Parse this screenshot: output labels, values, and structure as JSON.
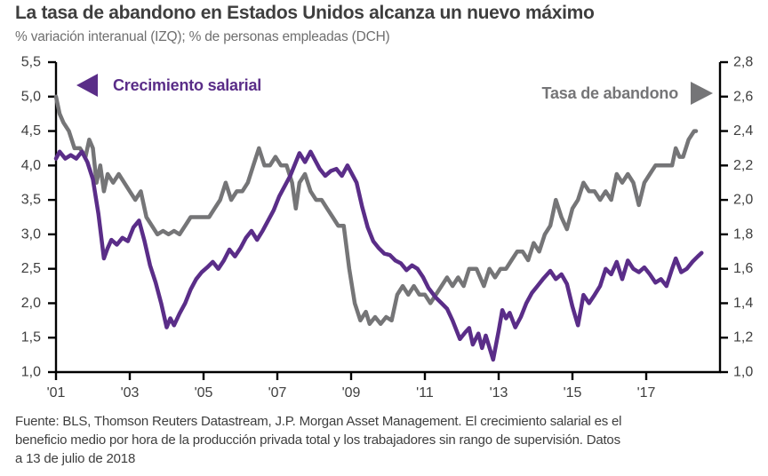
{
  "header": {
    "title": "La tasa de abandono en Estados Unidos alcanza un nuevo máximo",
    "subtitle": "% variación interanual (IZQ); % de personas empleadas (DCH)"
  },
  "legend": {
    "left_label": "Crecimiento salarial",
    "right_label": "Tasa de abandono"
  },
  "footer": {
    "lines": [
      "Fuente: BLS, Thomson Reuters Datastream, J.P. Morgan Asset Management. El crecimiento salarial es el",
      "beneficio medio  por hora de la producción privada total y los trabajadores sin rango de supervisión. Datos",
      "a 13 de julio de 2018"
    ]
  },
  "colors": {
    "wage_growth": "#5A2D88",
    "quit_rate": "#757577",
    "axis": "#000000",
    "tick_text": "#3E3E3E"
  },
  "chart_data": {
    "type": "line",
    "title": "La tasa de abandono en Estados Unidos alcanza un nuevo máximo",
    "subtitle": "% variación interanual (IZQ); % de personas empleadas (DCH)",
    "grid": false,
    "legend_position": "top-inside",
    "x_domain": [
      2001,
      2019
    ],
    "x_ticks": {
      "values": [
        2001,
        2003,
        2005,
        2007,
        2009,
        2011,
        2013,
        2015,
        2017
      ],
      "labels": [
        "'01",
        "'03",
        "'05",
        "'07",
        "'09",
        "'11",
        "'13",
        "'15",
        "'17"
      ]
    },
    "left_axis": {
      "label": "% variación interanual (IZQ)",
      "range": [
        1.0,
        5.5
      ],
      "tick_values": [
        5.5,
        5.0,
        4.5,
        4.0,
        3.5,
        3.0,
        2.5,
        2.0,
        1.5,
        1.0
      ],
      "tick_labels": [
        "5,5",
        "5,0",
        "4,5",
        "4,0",
        "3,5",
        "3,0",
        "2,5",
        "2,0",
        "1,5",
        "1,0"
      ]
    },
    "right_axis": {
      "label": "% de personas empleadas (DCH)",
      "range": [
        1.0,
        2.8
      ],
      "tick_values": [
        2.8,
        2.6,
        2.4,
        2.2,
        2.0,
        1.8,
        1.6,
        1.4,
        1.2,
        1.0
      ],
      "tick_labels": [
        "2,8",
        "2,6",
        "2,4",
        "2,2",
        "2,0",
        "1,8",
        "1,6",
        "1,4",
        "1,2",
        "1,0"
      ]
    },
    "series": [
      {
        "name": "Tasa de abandono",
        "color_key": "quit_rate",
        "axis": "right",
        "points": [
          [
            2001.0,
            2.6
          ],
          [
            2001.1,
            2.5
          ],
          [
            2001.2,
            2.45
          ],
          [
            2001.35,
            2.4
          ],
          [
            2001.5,
            2.3
          ],
          [
            2001.65,
            2.3
          ],
          [
            2001.8,
            2.25
          ],
          [
            2001.9,
            2.35
          ],
          [
            2002.0,
            2.3
          ],
          [
            2002.1,
            2.1
          ],
          [
            2002.2,
            2.2
          ],
          [
            2002.3,
            2.05
          ],
          [
            2002.4,
            2.15
          ],
          [
            2002.55,
            2.1
          ],
          [
            2002.7,
            2.15
          ],
          [
            2002.85,
            2.1
          ],
          [
            2003.0,
            2.05
          ],
          [
            2003.15,
            2.0
          ],
          [
            2003.3,
            2.05
          ],
          [
            2003.45,
            1.9
          ],
          [
            2003.6,
            1.85
          ],
          [
            2003.75,
            1.8
          ],
          [
            2003.9,
            1.82
          ],
          [
            2004.05,
            1.8
          ],
          [
            2004.2,
            1.82
          ],
          [
            2004.35,
            1.8
          ],
          [
            2004.5,
            1.85
          ],
          [
            2004.65,
            1.9
          ],
          [
            2004.85,
            1.9
          ],
          [
            2005.0,
            1.9
          ],
          [
            2005.15,
            1.9
          ],
          [
            2005.3,
            1.95
          ],
          [
            2005.45,
            2.0
          ],
          [
            2005.6,
            2.1
          ],
          [
            2005.75,
            2.0
          ],
          [
            2005.9,
            2.05
          ],
          [
            2006.05,
            2.05
          ],
          [
            2006.2,
            2.1
          ],
          [
            2006.35,
            2.2
          ],
          [
            2006.5,
            2.3
          ],
          [
            2006.65,
            2.2
          ],
          [
            2006.8,
            2.2
          ],
          [
            2006.95,
            2.25
          ],
          [
            2007.1,
            2.2
          ],
          [
            2007.25,
            2.2
          ],
          [
            2007.4,
            2.1
          ],
          [
            2007.5,
            1.95
          ],
          [
            2007.6,
            2.1
          ],
          [
            2007.75,
            2.15
          ],
          [
            2007.9,
            2.05
          ],
          [
            2008.05,
            2.0
          ],
          [
            2008.2,
            2.0
          ],
          [
            2008.35,
            1.95
          ],
          [
            2008.5,
            1.9
          ],
          [
            2008.65,
            1.85
          ],
          [
            2008.8,
            1.85
          ],
          [
            2008.95,
            1.6
          ],
          [
            2009.1,
            1.4
          ],
          [
            2009.25,
            1.3
          ],
          [
            2009.4,
            1.35
          ],
          [
            2009.5,
            1.28
          ],
          [
            2009.65,
            1.32
          ],
          [
            2009.8,
            1.28
          ],
          [
            2009.95,
            1.32
          ],
          [
            2010.1,
            1.3
          ],
          [
            2010.25,
            1.45
          ],
          [
            2010.4,
            1.5
          ],
          [
            2010.55,
            1.45
          ],
          [
            2010.7,
            1.5
          ],
          [
            2010.85,
            1.45
          ],
          [
            2011.0,
            1.45
          ],
          [
            2011.15,
            1.4
          ],
          [
            2011.3,
            1.45
          ],
          [
            2011.45,
            1.5
          ],
          [
            2011.6,
            1.55
          ],
          [
            2011.75,
            1.5
          ],
          [
            2011.9,
            1.55
          ],
          [
            2012.05,
            1.5
          ],
          [
            2012.2,
            1.6
          ],
          [
            2012.4,
            1.6
          ],
          [
            2012.6,
            1.5
          ],
          [
            2012.75,
            1.6
          ],
          [
            2012.9,
            1.55
          ],
          [
            2013.05,
            1.6
          ],
          [
            2013.2,
            1.6
          ],
          [
            2013.35,
            1.65
          ],
          [
            2013.5,
            1.7
          ],
          [
            2013.65,
            1.7
          ],
          [
            2013.8,
            1.65
          ],
          [
            2013.95,
            1.75
          ],
          [
            2014.1,
            1.7
          ],
          [
            2014.25,
            1.8
          ],
          [
            2014.4,
            1.85
          ],
          [
            2014.55,
            2.0
          ],
          [
            2014.7,
            1.9
          ],
          [
            2014.85,
            1.83
          ],
          [
            2015.0,
            1.95
          ],
          [
            2015.15,
            2.0
          ],
          [
            2015.3,
            2.1
          ],
          [
            2015.45,
            2.05
          ],
          [
            2015.6,
            2.05
          ],
          [
            2015.75,
            2.0
          ],
          [
            2015.9,
            2.05
          ],
          [
            2016.05,
            2.0
          ],
          [
            2016.2,
            2.15
          ],
          [
            2016.35,
            2.1
          ],
          [
            2016.5,
            2.15
          ],
          [
            2016.65,
            2.1
          ],
          [
            2016.8,
            1.97
          ],
          [
            2016.95,
            2.1
          ],
          [
            2017.1,
            2.15
          ],
          [
            2017.25,
            2.2
          ],
          [
            2017.4,
            2.2
          ],
          [
            2017.55,
            2.2
          ],
          [
            2017.7,
            2.2
          ],
          [
            2017.8,
            2.3
          ],
          [
            2017.9,
            2.25
          ],
          [
            2018.0,
            2.25
          ],
          [
            2018.15,
            2.35
          ],
          [
            2018.3,
            2.4
          ],
          [
            2018.35,
            2.4
          ]
        ]
      },
      {
        "name": "Crecimiento salarial",
        "color_key": "wage_growth",
        "axis": "left",
        "points": [
          [
            2001.0,
            4.1
          ],
          [
            2001.1,
            4.2
          ],
          [
            2001.25,
            4.1
          ],
          [
            2001.4,
            4.15
          ],
          [
            2001.55,
            4.1
          ],
          [
            2001.7,
            4.2
          ],
          [
            2001.85,
            4.05
          ],
          [
            2002.0,
            3.8
          ],
          [
            2002.15,
            3.3
          ],
          [
            2002.3,
            2.65
          ],
          [
            2002.4,
            2.8
          ],
          [
            2002.5,
            2.92
          ],
          [
            2002.65,
            2.85
          ],
          [
            2002.8,
            2.95
          ],
          [
            2002.95,
            2.9
          ],
          [
            2003.1,
            3.1
          ],
          [
            2003.25,
            3.2
          ],
          [
            2003.4,
            2.9
          ],
          [
            2003.55,
            2.55
          ],
          [
            2003.7,
            2.3
          ],
          [
            2003.85,
            2.0
          ],
          [
            2004.0,
            1.65
          ],
          [
            2004.1,
            1.78
          ],
          [
            2004.2,
            1.68
          ],
          [
            2004.35,
            1.85
          ],
          [
            2004.5,
            2.0
          ],
          [
            2004.65,
            2.2
          ],
          [
            2004.8,
            2.35
          ],
          [
            2004.95,
            2.45
          ],
          [
            2005.1,
            2.52
          ],
          [
            2005.25,
            2.6
          ],
          [
            2005.4,
            2.5
          ],
          [
            2005.55,
            2.62
          ],
          [
            2005.7,
            2.78
          ],
          [
            2005.85,
            2.68
          ],
          [
            2006.0,
            2.8
          ],
          [
            2006.15,
            2.95
          ],
          [
            2006.3,
            3.05
          ],
          [
            2006.45,
            2.92
          ],
          [
            2006.6,
            3.05
          ],
          [
            2006.75,
            3.2
          ],
          [
            2006.9,
            3.35
          ],
          [
            2007.05,
            3.55
          ],
          [
            2007.2,
            3.7
          ],
          [
            2007.35,
            3.85
          ],
          [
            2007.5,
            4.05
          ],
          [
            2007.6,
            4.18
          ],
          [
            2007.75,
            4.05
          ],
          [
            2007.9,
            4.2
          ],
          [
            2008.0,
            4.1
          ],
          [
            2008.15,
            3.95
          ],
          [
            2008.3,
            3.85
          ],
          [
            2008.45,
            3.92
          ],
          [
            2008.6,
            3.95
          ],
          [
            2008.75,
            3.85
          ],
          [
            2008.9,
            4.0
          ],
          [
            2009.0,
            3.9
          ],
          [
            2009.15,
            3.75
          ],
          [
            2009.3,
            3.4
          ],
          [
            2009.45,
            3.1
          ],
          [
            2009.6,
            2.9
          ],
          [
            2009.75,
            2.8
          ],
          [
            2009.9,
            2.72
          ],
          [
            2010.05,
            2.7
          ],
          [
            2010.2,
            2.62
          ],
          [
            2010.35,
            2.58
          ],
          [
            2010.5,
            2.48
          ],
          [
            2010.65,
            2.55
          ],
          [
            2010.8,
            2.5
          ],
          [
            2010.95,
            2.38
          ],
          [
            2011.1,
            2.22
          ],
          [
            2011.3,
            2.08
          ],
          [
            2011.45,
            2.0
          ],
          [
            2011.6,
            1.92
          ],
          [
            2011.75,
            1.75
          ],
          [
            2011.95,
            1.48
          ],
          [
            2012.1,
            1.58
          ],
          [
            2012.2,
            1.64
          ],
          [
            2012.3,
            1.4
          ],
          [
            2012.45,
            1.56
          ],
          [
            2012.55,
            1.35
          ],
          [
            2012.65,
            1.53
          ],
          [
            2012.85,
            1.18
          ],
          [
            2013.0,
            1.6
          ],
          [
            2013.1,
            1.9
          ],
          [
            2013.2,
            1.78
          ],
          [
            2013.3,
            1.86
          ],
          [
            2013.45,
            1.65
          ],
          [
            2013.6,
            1.8
          ],
          [
            2013.75,
            2.0
          ],
          [
            2013.9,
            2.15
          ],
          [
            2014.05,
            2.25
          ],
          [
            2014.2,
            2.35
          ],
          [
            2014.4,
            2.47
          ],
          [
            2014.55,
            2.35
          ],
          [
            2014.7,
            2.42
          ],
          [
            2014.85,
            2.28
          ],
          [
            2015.0,
            1.95
          ],
          [
            2015.15,
            1.68
          ],
          [
            2015.3,
            2.12
          ],
          [
            2015.45,
            2.0
          ],
          [
            2015.6,
            2.12
          ],
          [
            2015.75,
            2.25
          ],
          [
            2015.9,
            2.5
          ],
          [
            2016.05,
            2.42
          ],
          [
            2016.2,
            2.6
          ],
          [
            2016.35,
            2.35
          ],
          [
            2016.5,
            2.62
          ],
          [
            2016.65,
            2.5
          ],
          [
            2016.8,
            2.45
          ],
          [
            2016.95,
            2.52
          ],
          [
            2017.1,
            2.42
          ],
          [
            2017.25,
            2.3
          ],
          [
            2017.4,
            2.35
          ],
          [
            2017.55,
            2.25
          ],
          [
            2017.7,
            2.5
          ],
          [
            2017.8,
            2.65
          ],
          [
            2017.95,
            2.45
          ],
          [
            2018.1,
            2.5
          ],
          [
            2018.25,
            2.6
          ],
          [
            2018.4,
            2.68
          ],
          [
            2018.5,
            2.73
          ]
        ]
      }
    ]
  }
}
